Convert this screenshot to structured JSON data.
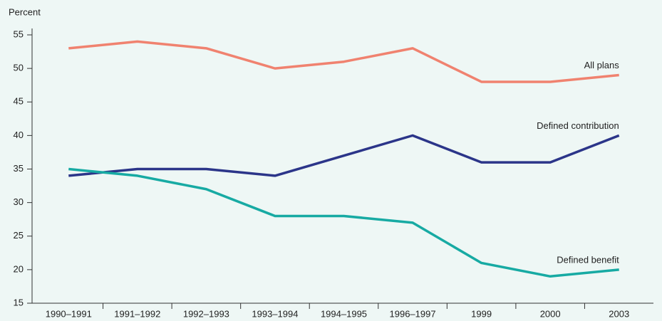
{
  "chart_data": {
    "type": "line",
    "y_label": "Percent",
    "categories": [
      "1990–1991",
      "1991–1992",
      "1992–1993",
      "1993–1994",
      "1994–1995",
      "1996–1997",
      "1999",
      "2000",
      "2003"
    ],
    "series": [
      {
        "name": "All plans",
        "color": "#f0826f",
        "values": [
          53,
          54,
          53,
          50,
          51,
          53,
          48,
          48,
          49
        ]
      },
      {
        "name": "Defined contribution",
        "color": "#2b3589",
        "values": [
          34,
          35,
          35,
          34,
          37,
          40,
          36,
          36,
          40
        ]
      },
      {
        "name": "Defined benefit",
        "color": "#17aaa3",
        "values": [
          35,
          34,
          32,
          28,
          28,
          27,
          21,
          19,
          20
        ]
      }
    ],
    "ylim": [
      15,
      55
    ],
    "yticks": [
      15,
      20,
      25,
      30,
      35,
      40,
      45,
      50,
      55
    ],
    "grid": false
  }
}
